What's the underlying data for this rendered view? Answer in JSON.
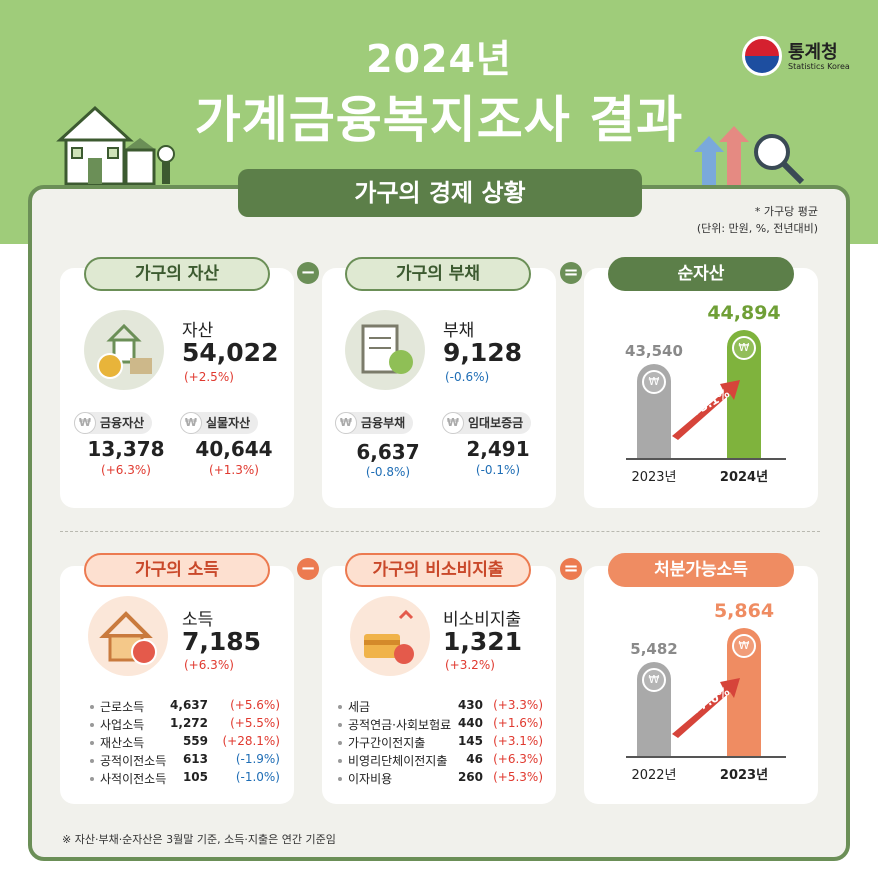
{
  "header": {
    "year": "2024년",
    "title": "가계금융복지조사 결과",
    "section": "가구의 경제 상황",
    "logo_ko": "통계청",
    "logo_en": "Statistics Korea",
    "note1": "* 가구당 평균",
    "note2": "(단위: 만원, %, 전년대비)"
  },
  "colors": {
    "green_dark": "#5c7f49",
    "green": "#7fb33d",
    "orange": "#ef8c62",
    "red": "#e0392f",
    "blue": "#1e6db5"
  },
  "operators": {
    "minus": "−",
    "equals": "="
  },
  "currency_symbol": "₩",
  "assets": {
    "pill": "가구의 자산",
    "label": "자산",
    "value": "54,022",
    "change": "(+2.5%)",
    "sub1": {
      "label": "금융자산",
      "value": "13,378",
      "change": "(+6.3%)"
    },
    "sub2": {
      "label": "실물자산",
      "value": "40,644",
      "change": "(+1.3%)"
    }
  },
  "debt": {
    "pill": "가구의 부채",
    "label": "부채",
    "value": "9,128",
    "change": "(-0.6%)",
    "sub1": {
      "label": "금융부채",
      "value": "6,637",
      "change": "(-0.8%)"
    },
    "sub2": {
      "label": "임대보증금",
      "value": "2,491",
      "change": "(-0.1%)"
    }
  },
  "net_assets": {
    "pill": "순자산",
    "chart_data": {
      "type": "bar",
      "categories": [
        "2023년",
        "2024년"
      ],
      "values": [
        43540,
        44894
      ],
      "value_labels": [
        "43,540",
        "44,894"
      ],
      "growth_label": "+3.1%"
    }
  },
  "income": {
    "pill": "가구의 소득",
    "label": "소득",
    "value": "7,185",
    "change": "(+6.3%)",
    "items": [
      {
        "name": "근로소득",
        "value": "4,637",
        "change": "(+5.6%)",
        "dir": "red"
      },
      {
        "name": "사업소득",
        "value": "1,272",
        "change": "(+5.5%)",
        "dir": "red"
      },
      {
        "name": "재산소득",
        "value": "559",
        "change": "(+28.1%)",
        "dir": "red"
      },
      {
        "name": "공적이전소득",
        "value": "613",
        "change": "(-1.9%)",
        "dir": "blue"
      },
      {
        "name": "사적이전소득",
        "value": "105",
        "change": "(-1.0%)",
        "dir": "blue"
      }
    ]
  },
  "nonconsumption": {
    "pill": "가구의 비소비지출",
    "label": "비소비지출",
    "value": "1,321",
    "change": "(+3.2%)",
    "items": [
      {
        "name": "세금",
        "value": "430",
        "change": "(+3.3%)",
        "dir": "red"
      },
      {
        "name": "공적연금·사회보험료",
        "value": "440",
        "change": "(+1.6%)",
        "dir": "red"
      },
      {
        "name": "가구간이전지출",
        "value": "145",
        "change": "(+3.1%)",
        "dir": "red"
      },
      {
        "name": "비영리단체이전지출",
        "value": "46",
        "change": "(+6.3%)",
        "dir": "red"
      },
      {
        "name": "이자비용",
        "value": "260",
        "change": "(+5.3%)",
        "dir": "red"
      }
    ]
  },
  "disposable": {
    "pill": "처분가능소득",
    "chart_data": {
      "type": "bar",
      "categories": [
        "2022년",
        "2023년"
      ],
      "values": [
        5482,
        5864
      ],
      "value_labels": [
        "5,482",
        "5,864"
      ],
      "growth_label": "+7.0%"
    }
  },
  "footnote": "※ 자산·부채·순자산은 3월말 기준, 소득·지출은 연간 기준임"
}
